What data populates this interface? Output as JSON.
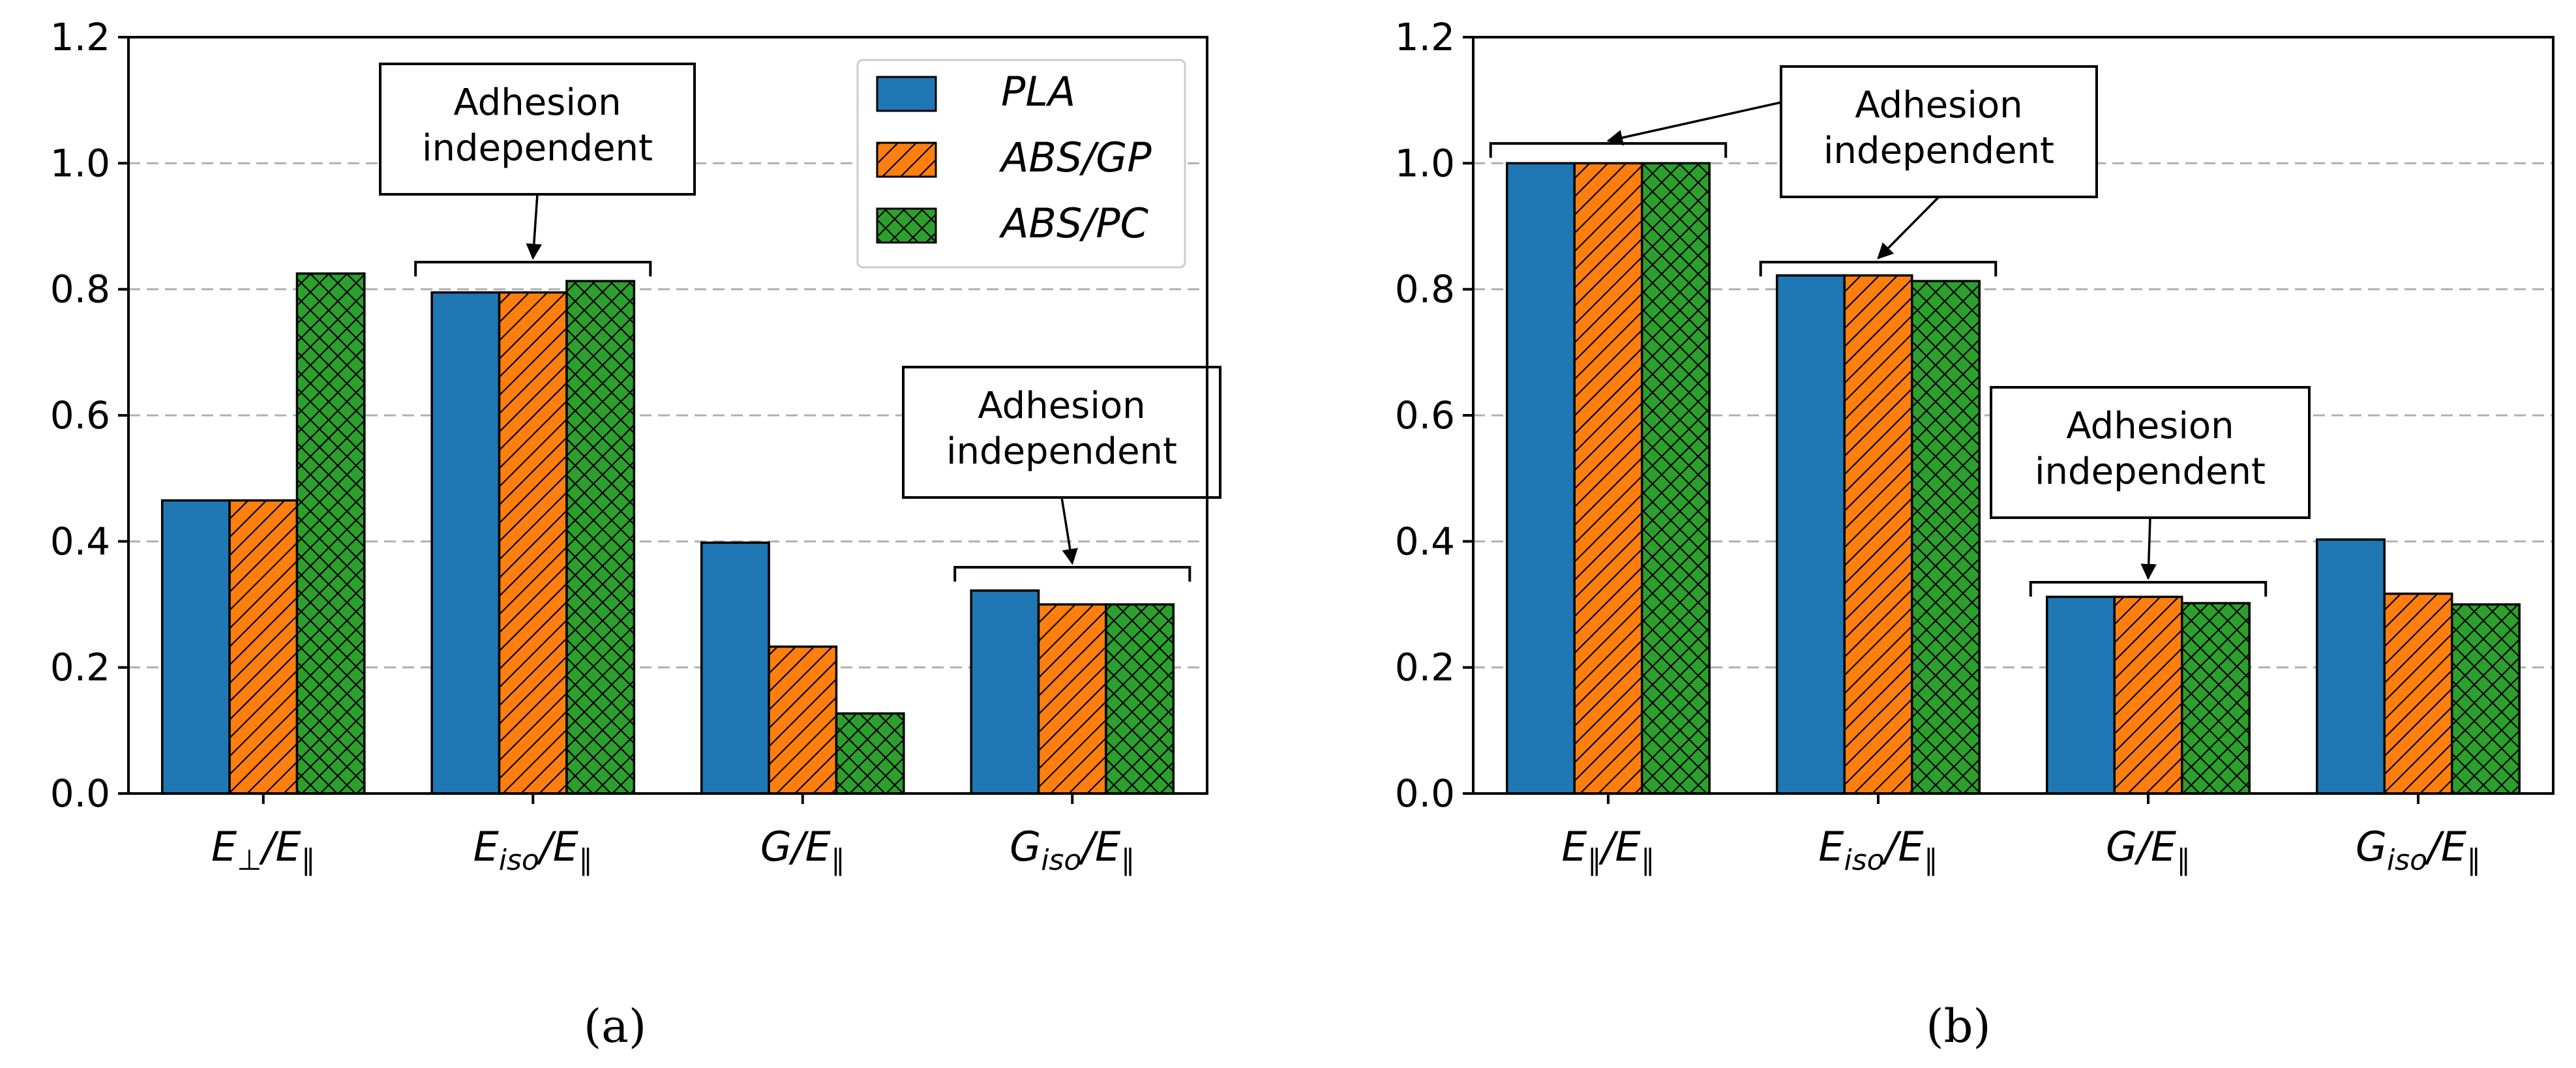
{
  "colors": {
    "PLA": "#1f77b4",
    "ABS/GP": "#ff7f0e",
    "ABS/PC": "#2ca02c",
    "grid": "#b0b0b0"
  },
  "legend": [
    "PLA",
    "ABS/GP",
    "ABS/PC"
  ],
  "chart_data": [
    {
      "type": "bar",
      "panel_label": "(a)",
      "categories": [
        {
          "base": "E",
          "sub": "⊥",
          "tail": "/E",
          "tail_sub": "∥"
        },
        {
          "base": "E",
          "sub": "iso",
          "tail": "/E",
          "tail_sub": "∥"
        },
        {
          "base": "G",
          "sub": "",
          "tail": "/E",
          "tail_sub": "∥"
        },
        {
          "base": "G",
          "sub": "iso",
          "tail": "/E",
          "tail_sub": "∥"
        }
      ],
      "series": [
        {
          "name": "PLA",
          "values": [
            0.465,
            0.795,
            0.398,
            0.322
          ]
        },
        {
          "name": "ABS/GP",
          "values": [
            0.465,
            0.795,
            0.233,
            0.3
          ]
        },
        {
          "name": "ABS/PC",
          "values": [
            0.825,
            0.813,
            0.127,
            0.3
          ]
        }
      ],
      "ylim": [
        0,
        1.2
      ],
      "yticks": [
        "0.0",
        "0.2",
        "0.4",
        "0.6",
        "0.8",
        "1.0",
        "1.2"
      ],
      "grid": "y-dashed",
      "legend_position": "top-right",
      "annotations": [
        {
          "lines": [
            "Adhesion",
            "independent"
          ],
          "category": 1
        },
        {
          "lines": [
            "Adhesion",
            "independent"
          ],
          "category": 3
        }
      ]
    },
    {
      "type": "bar",
      "panel_label": "(b)",
      "categories": [
        {
          "base": "E",
          "sub": "∥",
          "tail": "/E",
          "tail_sub": "∥"
        },
        {
          "base": "E",
          "sub": "iso",
          "tail": "/E",
          "tail_sub": "∥"
        },
        {
          "base": "G",
          "sub": "",
          "tail": "/E",
          "tail_sub": "∥"
        },
        {
          "base": "G",
          "sub": "iso",
          "tail": "/E",
          "tail_sub": "∥"
        }
      ],
      "series": [
        {
          "name": "PLA",
          "values": [
            1.0,
            0.822,
            0.312,
            0.403
          ]
        },
        {
          "name": "ABS/GP",
          "values": [
            1.0,
            0.822,
            0.312,
            0.317
          ]
        },
        {
          "name": "ABS/PC",
          "values": [
            1.0,
            0.813,
            0.302,
            0.3
          ]
        }
      ],
      "ylim": [
        0,
        1.2
      ],
      "yticks": [
        "0.0",
        "0.2",
        "0.4",
        "0.6",
        "0.8",
        "1.0",
        "1.2"
      ],
      "grid": "y-dashed",
      "annotations": [
        {
          "lines": [
            "Adhesion",
            "independent"
          ],
          "category": 1,
          "also_category": 0
        },
        {
          "lines": [
            "Adhesion",
            "independent"
          ],
          "category": 2
        }
      ]
    }
  ]
}
